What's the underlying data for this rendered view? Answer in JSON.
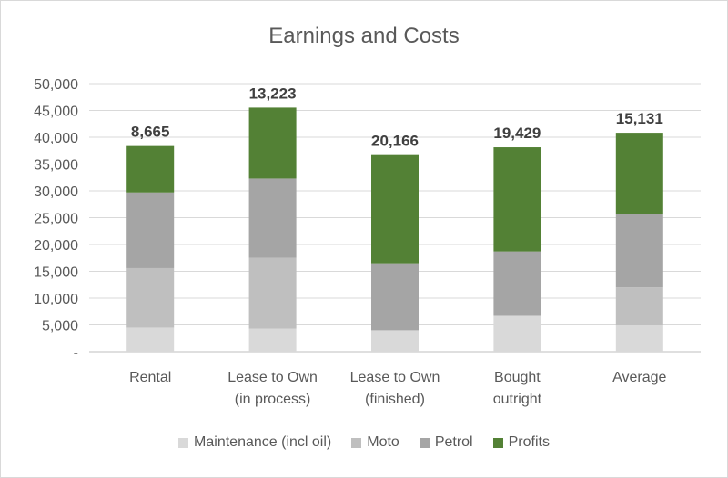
{
  "chart_data": {
    "type": "bar",
    "stacked": true,
    "title": "Earnings and Costs",
    "categories": [
      [
        "Rental"
      ],
      [
        "Lease to Own",
        "(in process)"
      ],
      [
        "Lease to Own",
        "(finished)"
      ],
      [
        "Bought",
        "outright"
      ],
      [
        "Average"
      ]
    ],
    "series": [
      {
        "name": "Maintenance (incl oil)",
        "color": "#d9d9d9",
        "values": [
          4500,
          4300,
          4000,
          6700,
          4900
        ]
      },
      {
        "name": "Moto",
        "color": "#bfbfbf",
        "values": [
          11100,
          13200,
          0,
          0,
          7100
        ]
      },
      {
        "name": "Petrol",
        "color": "#a5a5a5",
        "values": [
          14100,
          14800,
          12500,
          12000,
          13700
        ]
      },
      {
        "name": "Profits",
        "color": "#538135",
        "values": [
          8665,
          13223,
          20166,
          19429,
          15131
        ]
      }
    ],
    "data_labels": [
      "8,665",
      "13,223",
      "20,166",
      "19,429",
      "15,131"
    ],
    "y_ticks": [
      "-",
      "5,000",
      "10,000",
      "15,000",
      "20,000",
      "25,000",
      "30,000",
      "35,000",
      "40,000",
      "45,000",
      "50,000"
    ],
    "ylim": [
      0,
      50000
    ],
    "grid": true,
    "legend": "bottom"
  }
}
